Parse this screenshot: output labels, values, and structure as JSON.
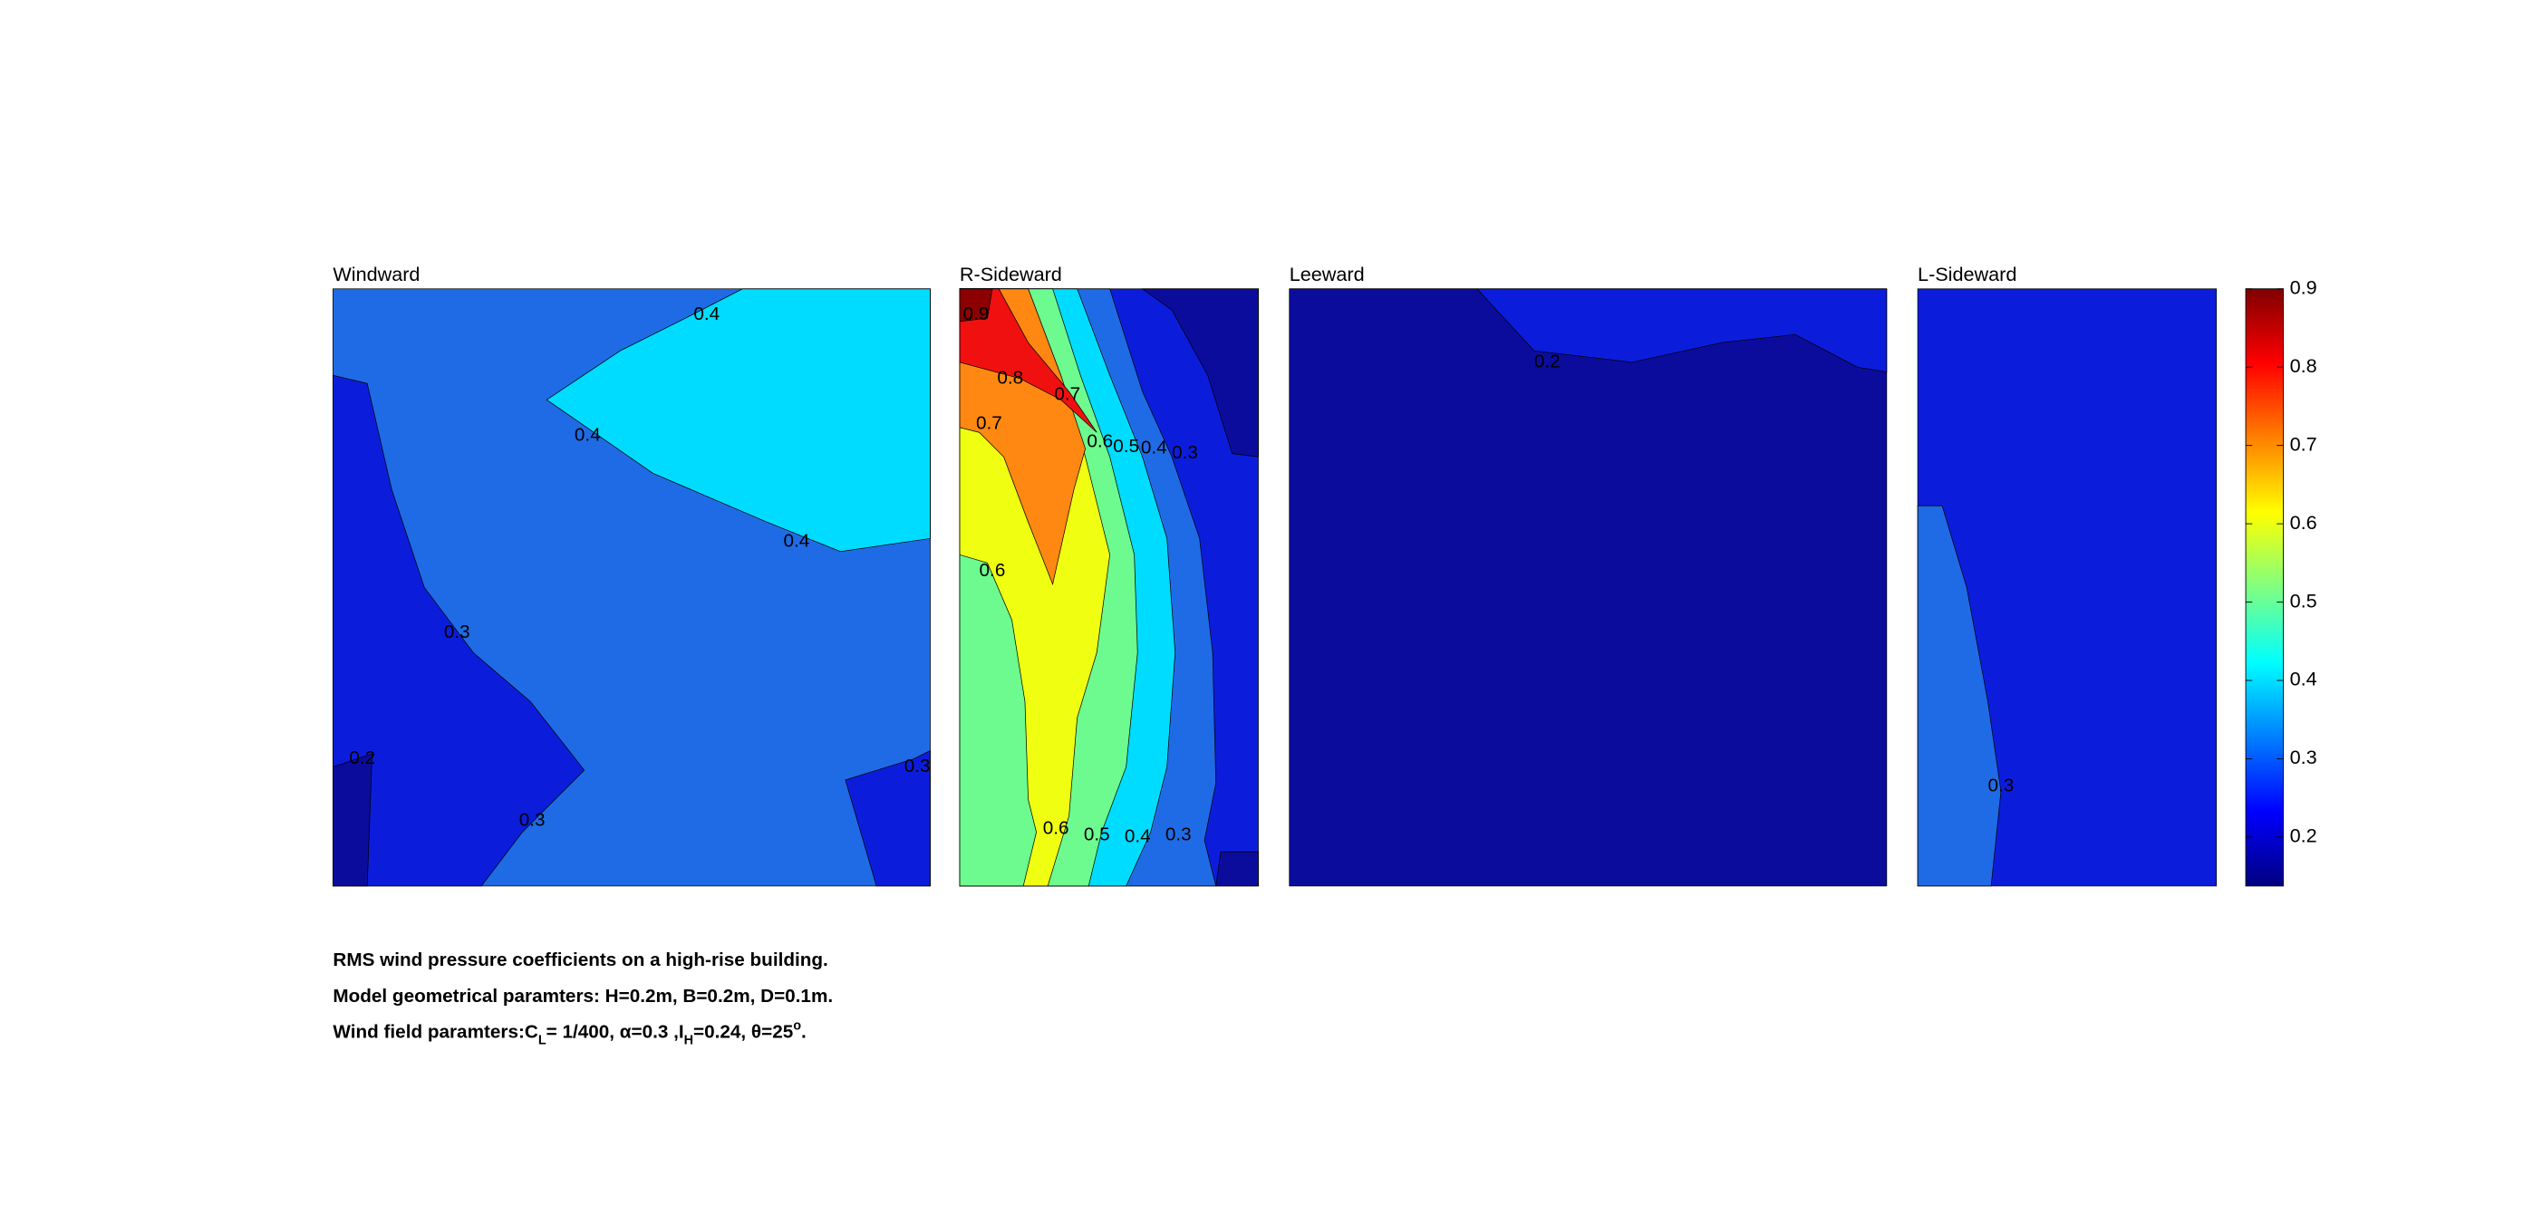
{
  "chart_data": [
    {
      "type": "contour",
      "title": "Windward",
      "contour_labels": [
        0.4,
        0.4,
        0.4,
        0.3,
        0.2,
        0.3,
        0.3
      ]
    },
    {
      "type": "contour",
      "title": "R-Sideward",
      "contour_labels": [
        0.9,
        0.8,
        0.7,
        0.7,
        0.6,
        0.5,
        0.4,
        0.3,
        0.6,
        0.6,
        0.5,
        0.4,
        0.3
      ]
    },
    {
      "type": "contour",
      "title": "Leeward",
      "contour_labels": [
        0.2
      ]
    },
    {
      "type": "contour",
      "title": "L-Sideward",
      "contour_labels": [
        0.3
      ]
    },
    {
      "type": "colorbar",
      "colormap": "jet",
      "ylim": [
        0.1375,
        0.9
      ],
      "yticks": [
        0.2,
        0.3,
        0.4,
        0.5,
        0.6,
        0.7,
        0.8,
        0.9
      ],
      "colors": [
        "#0c0c9c",
        "#0b1ddb",
        "#1f6be6",
        "#00dcff",
        "#6dfb8f",
        "#f0ff12",
        "#ff8812",
        "#f01010",
        "#8c0000"
      ]
    }
  ],
  "caption": [
    "RMS wind pressure coefficients on a high-rise building.",
    "Model geometrical paramters: H=0.2m, B=0.2m, D=0.1m.",
    [
      "Wind field paramters:C",
      "L",
      "= 1/400, α=0.3 ,I",
      "H",
      "=0.24, θ=25",
      "o",
      "."
    ]
  ]
}
